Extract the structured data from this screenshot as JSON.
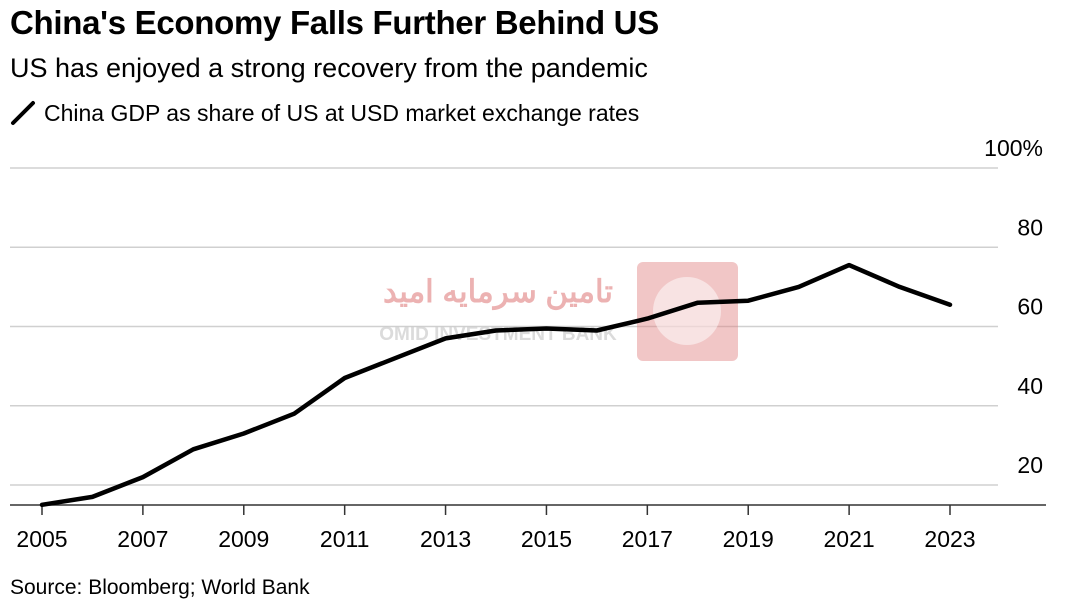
{
  "header": {
    "title": "China's Economy Falls Further Behind US",
    "subtitle": "US has enjoyed a strong recovery from the pandemic"
  },
  "legend": {
    "label": "China GDP as share of US at USD market exchange rates",
    "color": "#000000"
  },
  "footer": {
    "source": "Source: Bloomberg; World Bank"
  },
  "watermark": {
    "text_fa": "تامین سرمایه امید",
    "text_en": "OMID INVESTMENT BANK",
    "color": "#e08080"
  },
  "chart_data": {
    "type": "line",
    "title": "China's Economy Falls Further Behind US",
    "subtitle": "US has enjoyed a strong recovery from the pandemic",
    "xlabel": "",
    "ylabel": "",
    "xlim": [
      2005,
      2023
    ],
    "ylim": [
      10,
      100
    ],
    "y_ticks": [
      {
        "value": 100,
        "label": "100%"
      },
      {
        "value": 80,
        "label": "80"
      },
      {
        "value": 60,
        "label": "60"
      },
      {
        "value": 40,
        "label": "40"
      },
      {
        "value": 20,
        "label": "20"
      }
    ],
    "x_ticks": [
      "2005",
      "2007",
      "2009",
      "2011",
      "2013",
      "2015",
      "2017",
      "2019",
      "2021",
      "2023"
    ],
    "grid": true,
    "legend_position": "top-left",
    "series": [
      {
        "name": "China GDP as share of US at USD market exchange rates",
        "color": "#000000",
        "x": [
          2005,
          2006,
          2007,
          2008,
          2009,
          2010,
          2011,
          2012,
          2013,
          2014,
          2015,
          2016,
          2017,
          2018,
          2019,
          2020,
          2021,
          2022,
          2023
        ],
        "values": [
          15,
          17,
          22,
          29,
          33,
          38,
          47,
          52,
          57,
          59,
          59.5,
          59,
          62,
          66,
          66.5,
          70,
          75.5,
          70,
          65.5
        ]
      }
    ]
  }
}
